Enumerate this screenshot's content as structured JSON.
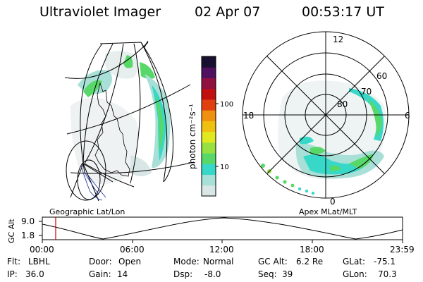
{
  "header": {
    "instrument": "Ultraviolet Imager",
    "date": "02 Apr 07",
    "time": "00:53:17 UT"
  },
  "left_panel": {
    "label": "Geographic Lat/Lon"
  },
  "right_panel": {
    "label": "Apex MLat/MLT",
    "hour_labels": {
      "top": "12",
      "left": "18",
      "right": "6",
      "bottom": "0"
    },
    "lat_labels": [
      "60",
      "70",
      "80"
    ]
  },
  "colorbar": {
    "label": "photon cm⁻²s⁻¹",
    "ticks": [
      "100",
      "10"
    ],
    "scale": "log",
    "colors": [
      "#d9e6e6",
      "#a8e0d8",
      "#38d8c8",
      "#58d868",
      "#98e040",
      "#e0e820",
      "#f0c010",
      "#f09010",
      "#e04010",
      "#c01010",
      "#901040",
      "#501060",
      "#181030"
    ]
  },
  "altitude_strip": {
    "ylabel": "GC Alt",
    "ymax_label": "9.0",
    "ymin_label": "1.8",
    "x_ticks": [
      "00:00",
      "06:00",
      "12:00",
      "18:00",
      "23:59"
    ],
    "marker_time": "00:53",
    "marker_color": "#c00000"
  },
  "info": {
    "flt_label": "Flt:",
    "flt_value": "LBHL",
    "ip_label": "IP:",
    "ip_value": "36.0",
    "door_label": "Door:",
    "door_value": "Open",
    "gain_label": "Gain:",
    "gain_value": "14",
    "mode_label": "Mode:",
    "mode_value": "Normal",
    "dsp_label": "Dsp:",
    "dsp_value": "-8.0",
    "gcalt_label": "GC Alt:",
    "gcalt_value": "6.2 Re",
    "seq_label": "Seq:",
    "seq_value": "39",
    "glat_label": "GLat:",
    "glat_value": "-75.1",
    "glon_label": "GLon:",
    "glon_value": "70.3"
  }
}
